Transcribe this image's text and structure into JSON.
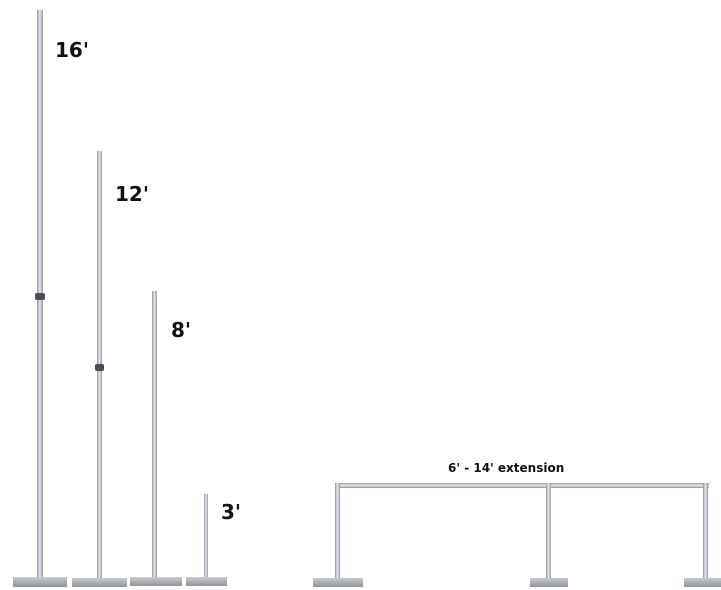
{
  "poles": [
    {
      "label": "16'"
    },
    {
      "label": "12'"
    },
    {
      "label": "8'"
    },
    {
      "label": "3'"
    }
  ],
  "crossbar": {
    "label": "6' - 14' extension"
  },
  "colors": {
    "background": "#ffffff",
    "pole": "#b9bcc2",
    "pole_highlight": "#e4e6ea",
    "pole_shadow": "#8e9298",
    "base": "#a7abb2",
    "joint": "#4a4d52",
    "text": "#111111"
  }
}
